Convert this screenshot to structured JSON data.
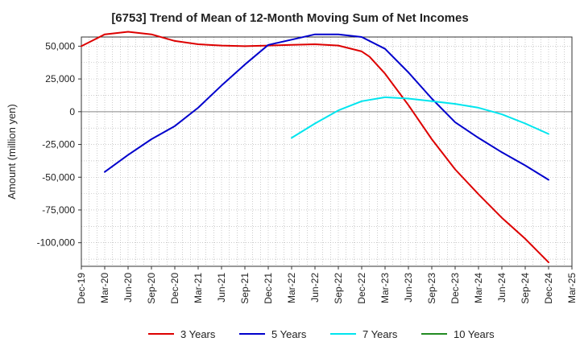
{
  "chart_data": {
    "type": "line",
    "title": "[6753]  Trend of Mean of 12-Month Moving Sum of Net Incomes",
    "xlabel": "",
    "ylabel": "Amount (million yen)",
    "ylim": [
      -118000,
      57000
    ],
    "y_ticks": [
      50000,
      25000,
      0,
      -25000,
      -50000,
      -75000,
      -100000
    ],
    "y_tick_labels": [
      "50,000",
      "25,000",
      "0",
      "-25,000",
      "-50,000",
      "-75,000",
      "-100,000"
    ],
    "x_tick_labels": [
      "Dec-19",
      "Mar-20",
      "Jun-20",
      "Sep-20",
      "Dec-20",
      "Mar-21",
      "Jun-21",
      "Sep-21",
      "Dec-21",
      "Mar-22",
      "Jun-22",
      "Sep-22",
      "Dec-22",
      "Mar-23",
      "Jun-23",
      "Sep-23",
      "Dec-23",
      "Mar-24",
      "Jun-24",
      "Sep-24",
      "Dec-24",
      "Mar-25"
    ],
    "grid": true,
    "legend_position": "bottom",
    "series": [
      {
        "name": "3 Years",
        "color": "#dd0000",
        "x": [
          "Dec-19",
          "Mar-20",
          "Jun-20",
          "Sep-20",
          "Dec-20",
          "Mar-21",
          "Jun-21",
          "Sep-21",
          "Dec-21",
          "Mar-22",
          "Jun-22",
          "Sep-22",
          "Dec-22",
          "Jan-23",
          "Mar-23",
          "Jun-23",
          "Sep-23",
          "Dec-23",
          "Mar-24",
          "Jun-24",
          "Sep-24",
          "Dec-24"
        ],
        "values": [
          50000,
          59000,
          61000,
          59000,
          54000,
          51500,
          50500,
          50000,
          50500,
          51000,
          51500,
          50500,
          46000,
          42000,
          29000,
          5000,
          -21000,
          -44000,
          -63000,
          -81000,
          -97000,
          -115000
        ]
      },
      {
        "name": "5 Years",
        "color": "#0000cc",
        "x": [
          "Dec-19",
          "Mar-20",
          "Jun-20",
          "Sep-20",
          "Dec-20",
          "Mar-21",
          "Jun-21",
          "Sep-21",
          "Dec-21",
          "Mar-22",
          "Jun-22",
          "Sep-22",
          "Dec-22",
          "Mar-23",
          "Jun-23",
          "Sep-23",
          "Dec-23",
          "Mar-24",
          "Jun-24",
          "Sep-24",
          "Dec-24"
        ],
        "values": [
          null,
          -46000,
          -33000,
          -21000,
          -11000,
          3000,
          20000,
          36000,
          51000,
          55000,
          59000,
          59000,
          57000,
          48000,
          30000,
          10000,
          -8000,
          -20000,
          -31000,
          -41000,
          -52000
        ]
      },
      {
        "name": "7 Years",
        "color": "#00e5ee",
        "x": [
          "Dec-19",
          "Mar-20",
          "Jun-20",
          "Sep-20",
          "Dec-20",
          "Mar-21",
          "Jun-21",
          "Sep-21",
          "Dec-21",
          "Mar-22",
          "Jun-22",
          "Sep-22",
          "Dec-22",
          "Mar-23",
          "Jun-23",
          "Sep-23",
          "Dec-23",
          "Mar-24",
          "Jun-24",
          "Sep-24",
          "Dec-24"
        ],
        "values": [
          null,
          null,
          null,
          null,
          null,
          null,
          null,
          null,
          null,
          -20000,
          -9000,
          1000,
          8000,
          11000,
          10000,
          8000,
          6000,
          3000,
          -2000,
          -9000,
          -17000
        ]
      },
      {
        "name": "10 Years",
        "color": "#228b22",
        "x": [],
        "values": []
      }
    ]
  }
}
